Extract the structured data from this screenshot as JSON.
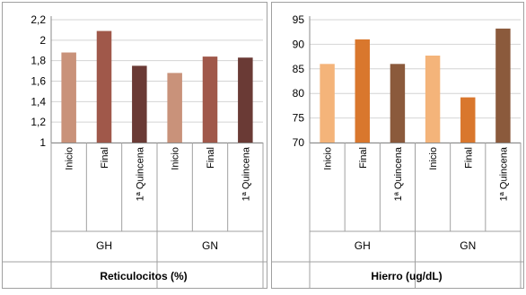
{
  "chart_data": [
    {
      "type": "bar",
      "title": "Reticulocitos (%)",
      "groups": [
        "GH",
        "GN"
      ],
      "categories": [
        "Inicio",
        "Final",
        "1ª Quincena",
        "Inicio",
        "Final",
        "1ª Quincena"
      ],
      "values": [
        1.88,
        2.09,
        1.75,
        1.68,
        1.84,
        1.83
      ],
      "colors": [
        "#c9927a",
        "#a0584a",
        "#6a3a35",
        "#c9927a",
        "#a0584a",
        "#6a3a35"
      ],
      "ylim": [
        1,
        2.2
      ],
      "yticks": [
        "1",
        "1,2",
        "1,4",
        "1,6",
        "1,8",
        "2",
        "2,2"
      ],
      "grid": true
    },
    {
      "type": "bar",
      "title": "Hierro (ug/dL)",
      "groups": [
        "GH",
        "GN"
      ],
      "categories": [
        "Inicio",
        "Final",
        "1ª Quincena",
        "Inicio",
        "Final",
        "1ª Quincena"
      ],
      "values": [
        86,
        91,
        86,
        87.7,
        79.2,
        93.2
      ],
      "colors": [
        "#f4b47a",
        "#d9772d",
        "#8b5a3c",
        "#f4b47a",
        "#d9772d",
        "#8b5a3c"
      ],
      "ylim": [
        70,
        95
      ],
      "yticks": [
        "70",
        "75",
        "80",
        "85",
        "90",
        "95"
      ],
      "grid": true
    }
  ]
}
